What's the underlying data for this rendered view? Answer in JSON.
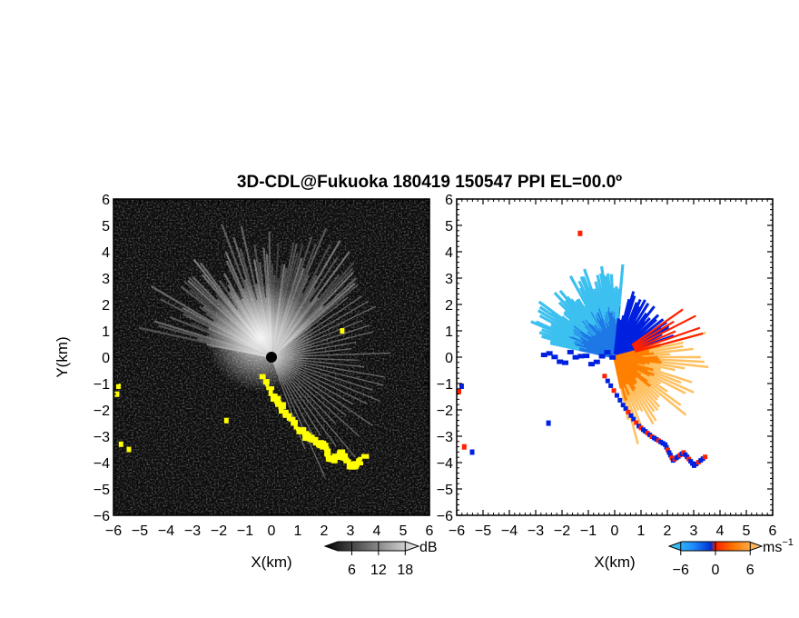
{
  "chart_data": {
    "type": "heatmap",
    "title": "3D-CDL@Fukuoka 180419 150547 PPI EL=00.0º",
    "panels": [
      {
        "id": "intensity",
        "field": "backscatter intensity",
        "xlabel": "X(km)",
        "ylabel": "Y(km)",
        "xlim": [
          -6,
          6
        ],
        "ylim": [
          -6,
          6
        ],
        "x_ticks": [
          "−6",
          "−5",
          "−4",
          "−3",
          "−2",
          "−1",
          "0",
          "1",
          "2",
          "3",
          "4",
          "5",
          "6"
        ],
        "y_ticks": [
          "6",
          "5",
          "4",
          "3",
          "2",
          "1",
          "0",
          "−1",
          "−2",
          "−3",
          "−4",
          "−5",
          "−6"
        ],
        "colorbar": {
          "unit": "dB",
          "ticks": [
            "6",
            "12",
            "18"
          ],
          "tick_values": [
            6,
            12,
            18
          ],
          "range": [
            0,
            21
          ],
          "colormap": "greyscale"
        },
        "highlight_color": "#ffff00",
        "features": [
          {
            "name": "clear-air returns",
            "sector_deg": [
              40,
              170
            ],
            "max_range_km": 5.5
          },
          {
            "name": "strong echo (hard target) band",
            "from": [
              -0.4,
              -0.7
            ],
            "to": [
              3.6,
              -3.8
            ]
          }
        ]
      },
      {
        "id": "velocity",
        "field": "radial velocity",
        "xlabel": "X(km)",
        "ylabel": "",
        "xlim": [
          -6,
          6
        ],
        "ylim": [
          -6,
          6
        ],
        "x_ticks": [
          "−6",
          "−5",
          "−4",
          "−3",
          "−2",
          "−1",
          "0",
          "1",
          "2",
          "3",
          "4",
          "5",
          "6"
        ],
        "y_ticks": [
          "6",
          "5",
          "4",
          "3",
          "2",
          "1",
          "0",
          "−1",
          "−2",
          "−3",
          "−4",
          "−5",
          "−6"
        ],
        "colorbar": {
          "unit": "ms",
          "unit_exponent": "−1",
          "ticks": [
            "−6",
            "0",
            "6"
          ],
          "tick_values": [
            -6,
            0,
            6
          ],
          "range": [
            -8,
            8
          ]
        },
        "colors": {
          "negative_far": "#0020e0",
          "negative": "#1e78e6",
          "negative_near": "#3cc0f0",
          "positive_near": "#ffc060",
          "positive": "#ff8000",
          "positive_far": "#ff2000"
        },
        "features": [
          {
            "name": "approaching (negative) region",
            "sector_deg": [
              90,
              165
            ],
            "max_range_km": 3.5,
            "mean_velocity": -5
          },
          {
            "name": "receding (positive) region",
            "sector_deg": [
              -80,
              20
            ],
            "max_range_km": 3.5,
            "mean_velocity": 4
          }
        ]
      }
    ]
  }
}
